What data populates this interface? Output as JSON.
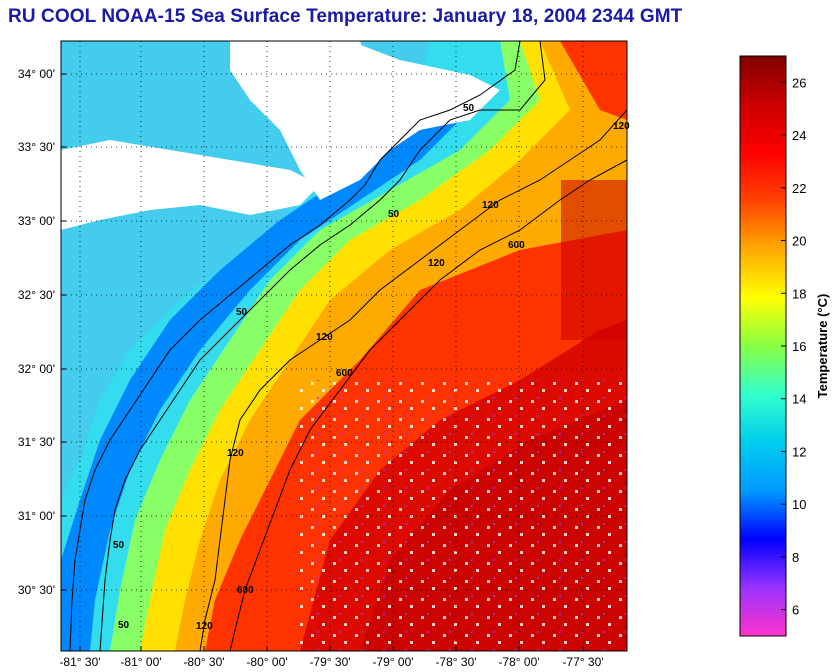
{
  "title": "RU COOL  NOAA-15  Sea Surface Temperature:  January 18, 2004 2344 GMT",
  "map": {
    "lat_labels": [
      "34° 00'",
      "33° 30'",
      "33° 00'",
      "32° 30'",
      "32° 00'",
      "31° 30'",
      "31° 00'",
      "30° 30'"
    ],
    "lon_labels": [
      "-81° 30'",
      "-81° 00'",
      "-80° 30'",
      "-80° 00'",
      "-79° 30'",
      "-79° 00'",
      "-78° 30'",
      "-78° 00'",
      "-77° 30'"
    ],
    "contour_labels": [
      "50",
      "50",
      "50",
      "50",
      "50",
      "120",
      "120",
      "120",
      "120",
      "120",
      "120",
      "600",
      "600",
      "600"
    ]
  },
  "colorbar": {
    "title": "Temperature (°C)",
    "ticks": [
      "26",
      "24",
      "22",
      "20",
      "18",
      "16",
      "14",
      "12",
      "10",
      "8",
      "6"
    ],
    "range": [
      5,
      27
    ],
    "colors": [
      "#ff33cc",
      "#9933ff",
      "#0000ff",
      "#0099ff",
      "#00ccee",
      "#33ffcc",
      "#88ff44",
      "#ffff00",
      "#ffaa00",
      "#ff4400",
      "#ff0000",
      "#cc0000",
      "#800000"
    ]
  }
}
